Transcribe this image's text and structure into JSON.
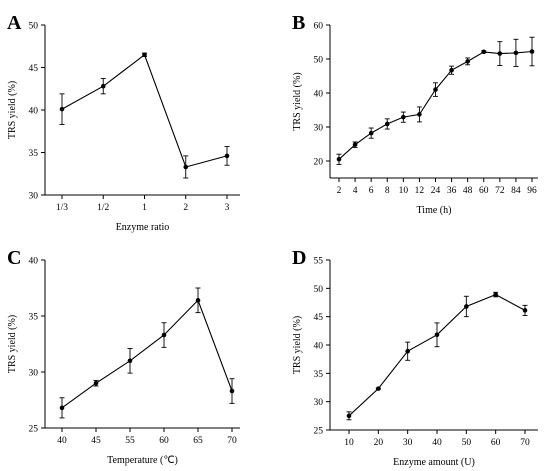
{
  "chart_data": [
    {
      "panel": "A",
      "type": "line",
      "categories": [
        "1/3",
        "1/2",
        "1",
        "2",
        "3"
      ],
      "values": [
        40.1,
        42.8,
        46.5,
        33.3,
        34.6
      ],
      "errors": [
        1.8,
        0.9,
        0.2,
        1.3,
        1.1
      ],
      "xlabel": "Enzyme ratio",
      "ylabel": "TRS yield (%)",
      "ylim": [
        30,
        50
      ],
      "yticks": [
        30,
        35,
        40,
        45,
        50
      ],
      "grid": false
    },
    {
      "panel": "B",
      "type": "line",
      "categories": [
        "2",
        "4",
        "6",
        "8",
        "10",
        "12",
        "24",
        "36",
        "48",
        "60",
        "72",
        "84",
        "96"
      ],
      "values": [
        20.5,
        24.8,
        28.2,
        30.9,
        32.9,
        33.7,
        41.0,
        46.7,
        49.3,
        52.1,
        51.6,
        51.8,
        52.2
      ],
      "errors": [
        1.5,
        0.8,
        1.5,
        1.5,
        1.5,
        2.2,
        2.0,
        1.2,
        1.0,
        0.3,
        3.5,
        4.0,
        4.2
      ],
      "xlabel": "Time (h)",
      "ylabel": "TRS yield (%)",
      "ylim": [
        15,
        60
      ],
      "yticks": [
        20,
        30,
        40,
        50,
        60
      ],
      "grid": false
    },
    {
      "panel": "C",
      "type": "line",
      "categories": [
        "40",
        "45",
        "55",
        "60",
        "65",
        "70"
      ],
      "values": [
        26.8,
        29.0,
        31.0,
        33.3,
        36.4,
        28.3
      ],
      "errors": [
        0.9,
        0.25,
        1.1,
        1.1,
        1.1,
        1.1
      ],
      "xlabel": "Temperature (℃)",
      "ylabel": "TRS yield (%)",
      "ylim": [
        25,
        40
      ],
      "yticks": [
        25,
        30,
        35,
        40
      ],
      "grid": false
    },
    {
      "panel": "D",
      "type": "line",
      "categories": [
        "10",
        "20",
        "30",
        "40",
        "50",
        "60",
        "70"
      ],
      "values": [
        27.5,
        32.3,
        38.9,
        41.8,
        46.8,
        48.9,
        46.1
      ],
      "errors": [
        0.7,
        0.1,
        1.6,
        2.1,
        1.8,
        0.4,
        0.9
      ],
      "xlabel": "Enzyme amount (U)",
      "ylabel": "TRS yield (%)",
      "ylim": [
        25,
        55
      ],
      "yticks": [
        25,
        30,
        35,
        40,
        45,
        50,
        55
      ],
      "grid": false
    }
  ]
}
